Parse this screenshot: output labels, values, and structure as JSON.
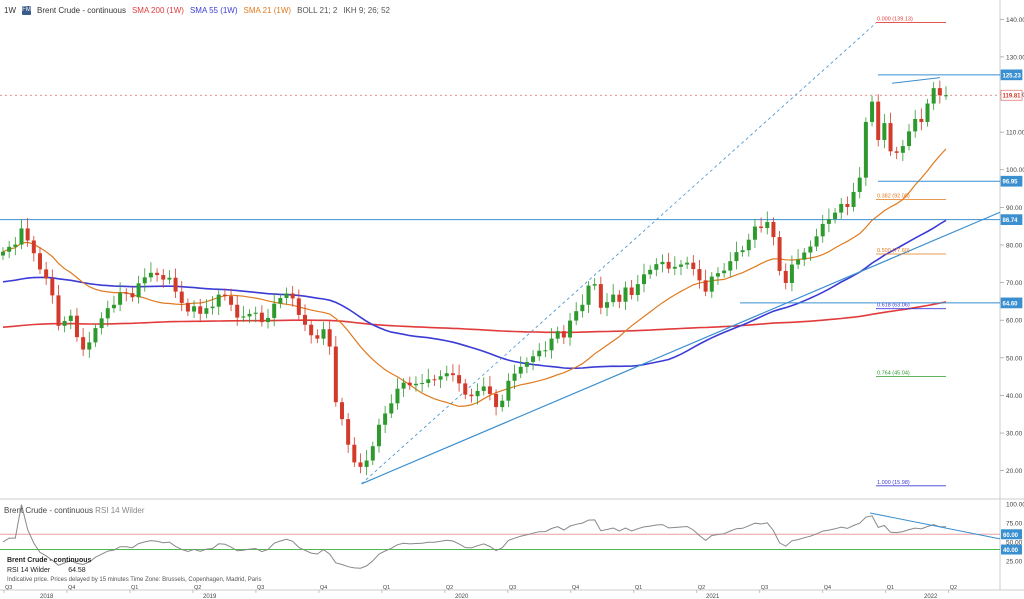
{
  "header": {
    "timeframe": "1W",
    "logo": "FM",
    "instrument": "Brent Crude - continuous",
    "sma200": "SMA 200 (1W)",
    "sma55": "SMA 55 (1W)",
    "sma21": "SMA 21 (1W)",
    "boll": "BOLL 21; 2",
    "ikh": "IKH 9; 26; 52"
  },
  "rsi_panel": {
    "instrument": "Brent Crude - continuous",
    "indicator": "RSI 14 Wilder",
    "legend_title": "Brent Crude - continuous",
    "legend_label": "RSI 14 Wilder",
    "legend_value": "64.58",
    "note": "Indicative price. Prices delayed by 15 minutes  Time Zone: Brussels, Copenhagen, Madrid, Paris"
  },
  "colors": {
    "up": "#2e9a2e",
    "down": "#d23a2a",
    "sma200": "#e23b3b",
    "sma55": "#3b3bd6",
    "sma21": "#e07a1f",
    "trend": "#3a8fd0",
    "rsi": "#888888",
    "green_level": "#4cbb4c",
    "red_level": "#e8a0a0"
  },
  "chart_data": [
    {
      "type": "candlestick",
      "y_axis_ticks": [
        20,
        30,
        40,
        50,
        60,
        70,
        80,
        90,
        100,
        110,
        120,
        130,
        140
      ],
      "ylim": [
        13,
        143
      ],
      "x_quarter_labels": [
        "Q3",
        "Q4",
        "Q1",
        "Q2",
        "Q3",
        "Q4",
        "Q1",
        "Q2",
        "Q3",
        "Q4",
        "Q1",
        "Q2",
        "Q3",
        "Q4",
        "Q1",
        "Q2",
        "Q3",
        "Q4",
        "Q1",
        "Q2",
        "Q3"
      ],
      "x_year_labels": [
        "2018",
        "2019",
        "2020",
        "2021",
        "2022"
      ],
      "price_labels": [
        {
          "value": 125.23,
          "text": "125.23"
        },
        {
          "value": 119.81,
          "text": "119.81"
        },
        {
          "value": 96.95,
          "text": "96.95"
        },
        {
          "value": 86.74,
          "text": "86.74"
        },
        {
          "value": 64.6,
          "text": "64.60"
        }
      ],
      "fibonacci": [
        {
          "value": 139.13,
          "text": "0.000 (139.13)",
          "color": "#e23b3b"
        },
        {
          "value": 92.05,
          "text": "0.382 (92.05)",
          "color": "#e07a1f"
        },
        {
          "value": 77.6,
          "text": "0.500 (77.60)",
          "color": "#e07a1f"
        },
        {
          "value": 63.06,
          "text": "0.618 (63.06)",
          "color": "#3b3bd6"
        },
        {
          "value": 45.04,
          "text": "0.764 (45.04)",
          "color": "#2e9a2e"
        },
        {
          "value": 15.98,
          "text": "1.000 (15.98)",
          "color": "#3b3bd6"
        }
      ],
      "close_series": [
        78.2,
        79.5,
        80.1,
        84.4,
        81.2,
        77.8,
        73.5,
        71.1,
        66.6,
        58.5,
        59.8,
        61.2,
        55.5,
        52.2,
        54.1,
        57.9,
        60.5,
        63.2,
        64.1,
        67.3,
        67.2,
        66.1,
        69.8,
        71.4,
        72.6,
        72.0,
        70.8,
        71.3,
        67.6,
        64.6,
        62.3,
        63.7,
        61.7,
        63.2,
        63.6,
        66.8,
        66.4,
        64.1,
        60.7,
        61.0,
        61.7,
        62.0,
        59.5,
        60.6,
        64.4,
        65.9,
        67.1,
        65.8,
        61.4,
        58.8,
        56.0,
        55.1,
        57.6,
        53.0,
        38.2,
        33.7,
        26.9,
        22.2,
        21.0,
        22.7,
        26.5,
        32.2,
        35.2,
        37.9,
        41.8,
        43.4,
        42.7,
        43.1,
        43.3,
        44.3,
        44.2,
        45.1,
        45.9,
        45.4,
        43.2,
        40.2,
        39.8,
        41.2,
        42.4,
        40.4,
        36.9,
        38.6,
        43.9,
        45.8,
        47.6,
        48.9,
        50.4,
        51.9,
        52.0,
        55.1,
        57.1,
        55.4,
        59.9,
        62.4,
        64.1,
        69.2,
        69.6,
        63.3,
        64.8,
        66.8,
        64.9,
        68.7,
        66.7,
        69.6,
        72.2,
        73.4,
        74.9,
        75.5,
        73.7,
        74.2,
        74.8,
        75.3,
        73.6,
        70.6,
        67.6,
        71.6,
        72.5,
        73.2,
        75.7,
        78.1,
        78.6,
        81.4,
        84.9,
        84.5,
        86.1,
        82.1,
        73.1,
        69.9,
        74.8,
        76.1,
        78.0,
        79.6,
        82.3,
        85.6,
        86.9,
        88.6,
        90.9,
        90.1,
        94.1,
        97.9,
        112.7,
        118.1,
        107.9,
        112.4,
        104.9,
        104.5,
        106.3,
        110.2,
        113.5,
        112.7,
        117.6,
        121.7,
        119.8,
        119.8
      ]
    },
    {
      "type": "line",
      "title": "RSI 14 Wilder",
      "y_axis_ticks": [
        25.0,
        50.0,
        75.0,
        100.0
      ],
      "ylim": [
        0,
        105
      ],
      "levels": [
        {
          "value": 60.0,
          "text": "60.00"
        },
        {
          "value": 40.0,
          "text": "40.00"
        }
      ],
      "value": 64.58
    }
  ]
}
